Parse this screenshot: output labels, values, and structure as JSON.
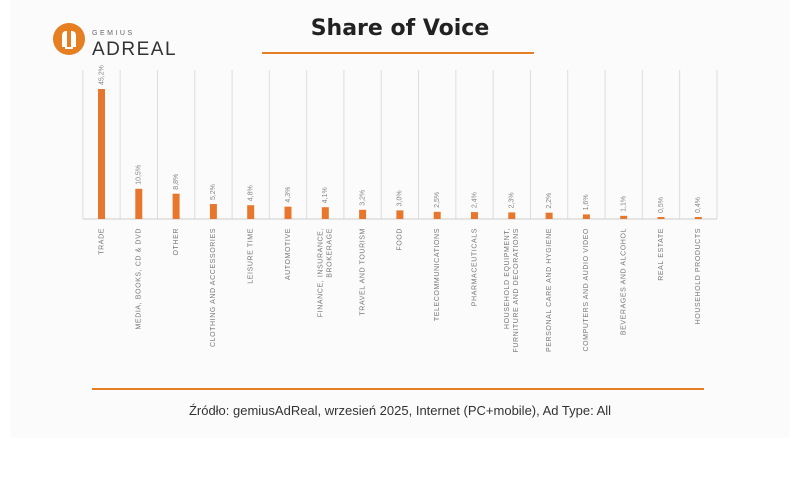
{
  "logo": {
    "small": "GEMIUS",
    "main": "ADREAL"
  },
  "title": "Share of Voice",
  "source": "Źródło: gemiusAdReal, wrzesień 2025, Internet (PC+mobile), Ad Type: All",
  "colors": {
    "accent": "#e67e22",
    "bar": "#e8772e",
    "grid": "#dddddd"
  },
  "chart_data": {
    "type": "bar",
    "title": "Share of Voice",
    "xlabel": "",
    "ylabel": "",
    "ylim": [
      0,
      45.2
    ],
    "grid": true,
    "categories": [
      "TRADE",
      "MEDIA, BOOKS, CD & DVD",
      "OTHER",
      "CLOTHING AND ACCESSORIES",
      "LEISURE TIME",
      "AUTOMOTIVE",
      "FINANCE, INSURANCE, BROKERAGE",
      "TRAVEL AND TOURISM",
      "FOOD",
      "TELECOMMUNICATIONS",
      "PHARMACEUTICALS",
      "HOUSEHOLD EQUIPMENT, FURNITURE AND DECORATIONS",
      "PERSONAL CARE AND HYGIENE",
      "COMPUTERS AND AUDIO VIDEO",
      "BEVERAGES AND ALCOHOL",
      "REAL ESTATE",
      "HOUSEHOLD PRODUCTS"
    ],
    "values": [
      45.2,
      10.5,
      8.8,
      5.2,
      4.8,
      4.3,
      4.1,
      3.2,
      3.0,
      2.5,
      2.4,
      2.3,
      2.2,
      1.6,
      1.1,
      0.5,
      0.4
    ],
    "value_labels": [
      "45,2%",
      "10,5%",
      "8,8%",
      "5,2%",
      "4,8%",
      "4,3%",
      "4,1%",
      "3,2%",
      "3,0%",
      "2,5%",
      "2,4%",
      "2,3%",
      "2,2%",
      "1,6%",
      "1,1%",
      "0,5%",
      "0,4%"
    ],
    "category_lines": [
      [
        "TRADE"
      ],
      [
        "MEDIA, BOOKS, CD & DVD"
      ],
      [
        "OTHER"
      ],
      [
        "CLOTHING AND ACCESSORIES"
      ],
      [
        "LEISURE TIME"
      ],
      [
        "AUTOMOTIVE"
      ],
      [
        "FINANCE, INSURANCE,",
        "BROKERAGE"
      ],
      [
        "TRAVEL AND TOURISM"
      ],
      [
        "FOOD"
      ],
      [
        "TELECOMMUNICATIONS"
      ],
      [
        "PHARMACEUTICALS"
      ],
      [
        "HOUSEHOLD EQUIPMENT,",
        "FURNITURE AND DECORATIONS"
      ],
      [
        "PERSONAL CARE AND HYGIENE"
      ],
      [
        "COMPUTERS AND AUDIO VIDEO"
      ],
      [
        "BEVERAGES AND ALCOHOL"
      ],
      [
        "REAL ESTATE"
      ],
      [
        "HOUSEHOLD PRODUCTS"
      ]
    ]
  }
}
